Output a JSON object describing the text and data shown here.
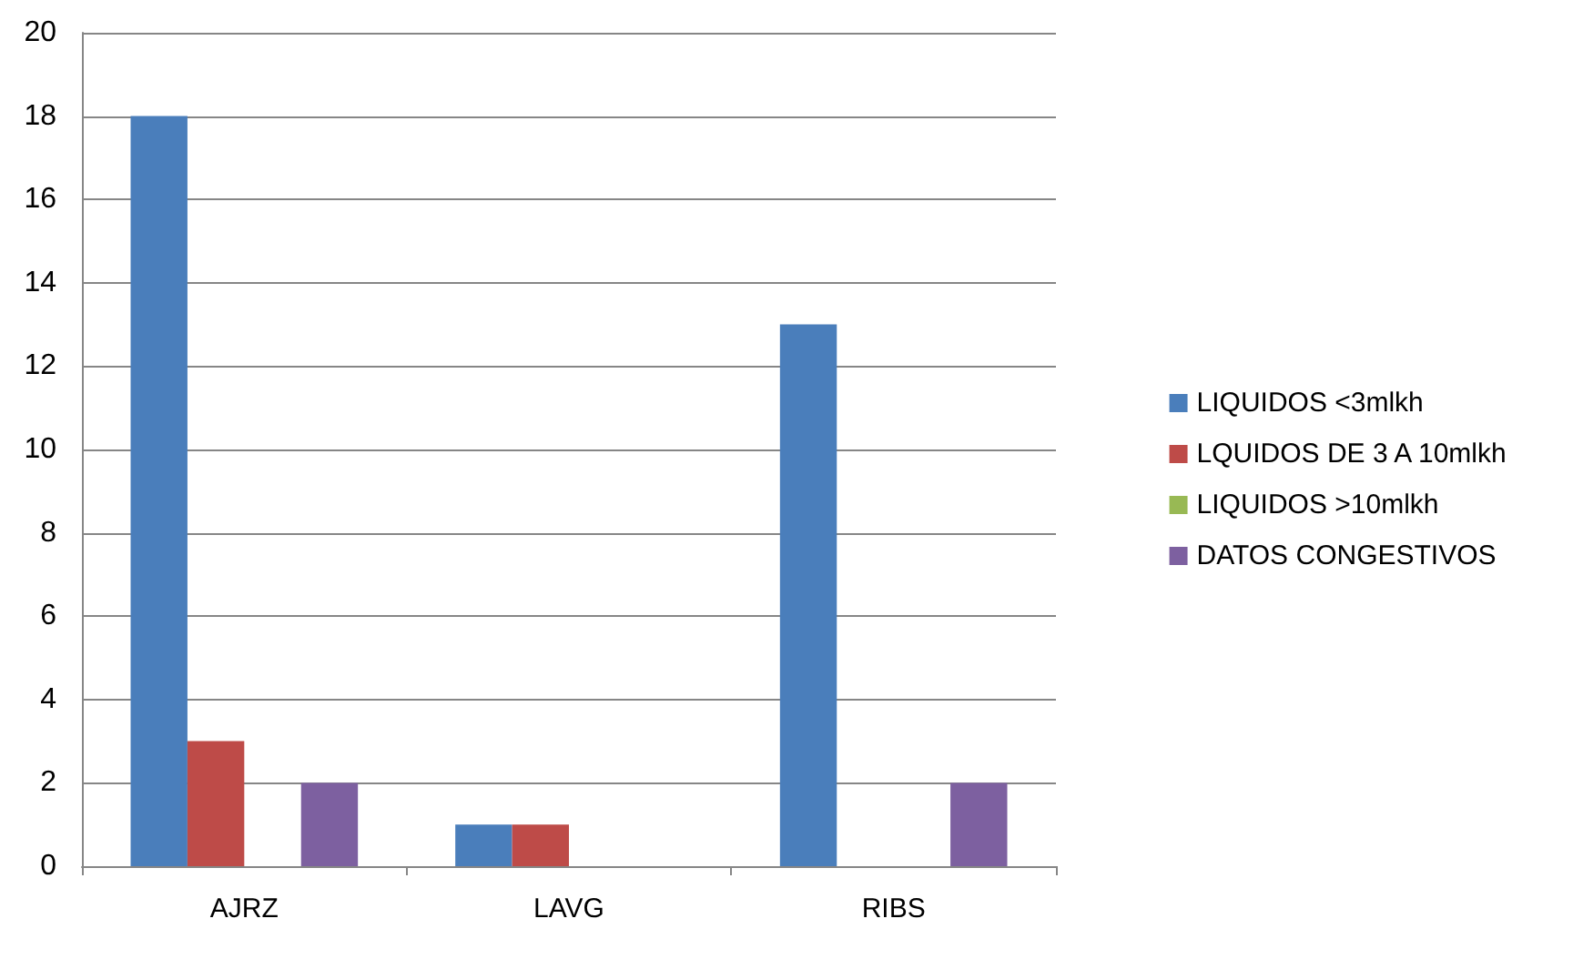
{
  "chart_data": {
    "type": "bar",
    "categories": [
      "AJRZ",
      "LAVG",
      "RIBS"
    ],
    "series": [
      {
        "name": "LIQUIDOS <3mlkh",
        "color": "#4a7ebb",
        "values": [
          18,
          1,
          13
        ]
      },
      {
        "name": "LQUIDOS DE 3 A 10mlkh",
        "color": "#be4b48",
        "values": [
          3,
          1,
          0
        ]
      },
      {
        "name": "LIQUIDOS >10mlkh",
        "color": "#98b954",
        "values": [
          0,
          0,
          0
        ]
      },
      {
        "name": "DATOS CONGESTIVOS",
        "color": "#7d60a0",
        "values": [
          2,
          0,
          2
        ]
      }
    ],
    "ylim": [
      0,
      20
    ],
    "yticks": [
      0,
      2,
      4,
      6,
      8,
      10,
      12,
      14,
      16,
      18,
      20
    ],
    "grid": "y",
    "legend": "right"
  }
}
